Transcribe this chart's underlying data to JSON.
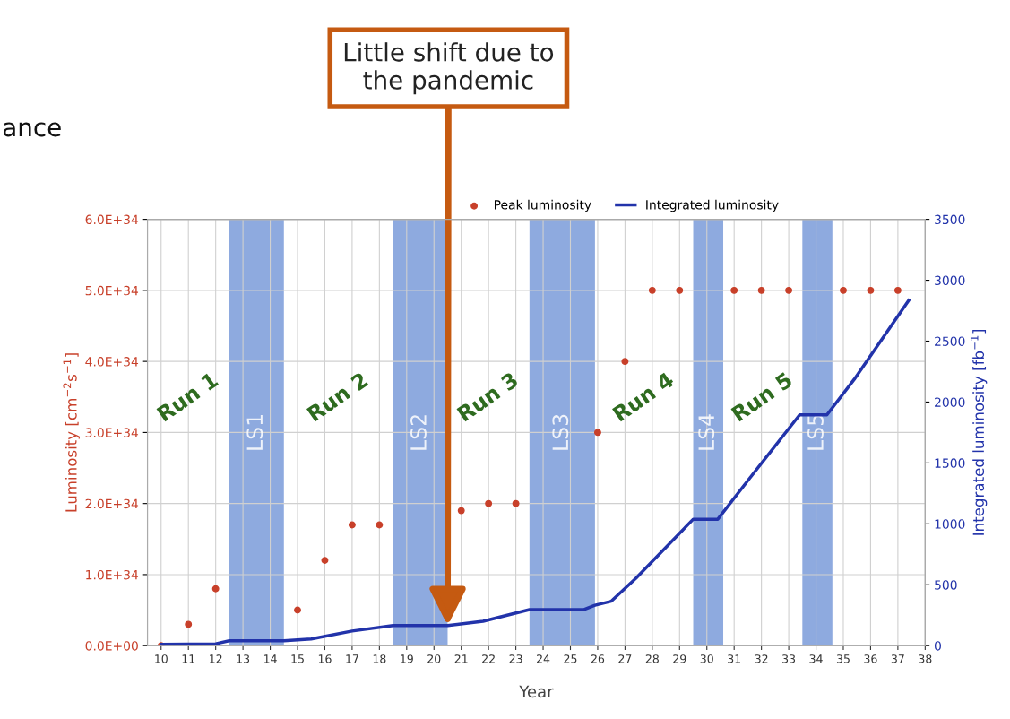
{
  "chart_data": {
    "type": "scatter",
    "xlabel": "Year",
    "ylabel": "Luminosity [cm$^{−2}$s$^{−1}$]",
    "y2label": "Integrated luminosity [fb$^{−1}$]",
    "xlim": [
      9.5,
      38
    ],
    "xticks": [
      10,
      11,
      12,
      13,
      14,
      15,
      16,
      17,
      18,
      19,
      20,
      21,
      22,
      23,
      24,
      25,
      26,
      27,
      28,
      29,
      30,
      31,
      32,
      33,
      34,
      35,
      36,
      37,
      38
    ],
    "ylim": [
      0,
      6e+34
    ],
    "yticks": [
      {
        "value": 0,
        "label": "0.0E+00"
      },
      {
        "value": 1e+34,
        "label": "1.0E+34"
      },
      {
        "value": 2e+34,
        "label": "2.0E+34"
      },
      {
        "value": 3e+34,
        "label": "3.0E+34"
      },
      {
        "value": 4e+34,
        "label": "4.0E+34"
      },
      {
        "value": 5e+34,
        "label": "5.0E+34"
      },
      {
        "value": 6e+34,
        "label": "6.0E+34"
      }
    ],
    "y2lim": [
      0,
      3500
    ],
    "y2ticks": [
      0,
      500,
      1000,
      1500,
      2000,
      2500,
      3000,
      3500
    ],
    "grid": true,
    "legend": "top",
    "series": [
      {
        "name": "Peak luminosity",
        "marker": "circle",
        "color": "#c8402a",
        "x": [
          10,
          11,
          12,
          15,
          16,
          17,
          18,
          21,
          22,
          23,
          26,
          27,
          28,
          29,
          31,
          32,
          33,
          35,
          36,
          37
        ],
        "values": [
          0,
          3e+33,
          8e+33,
          5e+33,
          1.2e+34,
          1.7e+34,
          1.7e+34,
          1.9e+34,
          2e+34,
          2e+34,
          3e+34,
          4e+34,
          5e+34,
          5e+34,
          5e+34,
          5e+34,
          5e+34,
          5e+34,
          5e+34,
          5e+34
        ]
      },
      {
        "name": "Integrated luminosity",
        "type": "line",
        "axis": "y2",
        "color": "#2233aa",
        "line_style": "solid",
        "marker": "none",
        "x": [
          10,
          12,
          12.5,
          14.5,
          15.5,
          17,
          18.5,
          20.5,
          21.8,
          23.5,
          25.5,
          25.9,
          26.5,
          27.4,
          29.5,
          30.4,
          31.6,
          33.4,
          34.4,
          35.4,
          37.4
        ],
        "values": [
          10,
          15,
          40,
          40,
          55,
          120,
          165,
          165,
          200,
          296,
          296,
          332,
          365,
          553,
          1038,
          1038,
          1383,
          1895,
          1895,
          2186,
          2836
        ]
      }
    ],
    "bands": [
      {
        "axis": "x",
        "from": 12.5,
        "to": 14.5,
        "label": "LS1",
        "color": "#8eaadf"
      },
      {
        "axis": "x",
        "from": 18.5,
        "to": 20.5,
        "label": "LS2",
        "color": "#8eaadf"
      },
      {
        "axis": "x",
        "from": 23.5,
        "to": 25.9,
        "label": "LS3",
        "color": "#8eaadf"
      },
      {
        "axis": "x",
        "from": 29.5,
        "to": 30.6,
        "label": "LS4",
        "color": "#8eaadf"
      },
      {
        "axis": "x",
        "from": 33.5,
        "to": 34.6,
        "label": "LS5",
        "color": "#8eaadf"
      }
    ],
    "annotations": [
      "Run 1",
      "Run 2",
      "Run 3",
      "Run 4",
      "Run 5",
      {
        "text": "Little shift due to\nthe pandemic",
        "x": 20.5,
        "y": 2.8e+33
      },
      "ance"
    ]
  }
}
